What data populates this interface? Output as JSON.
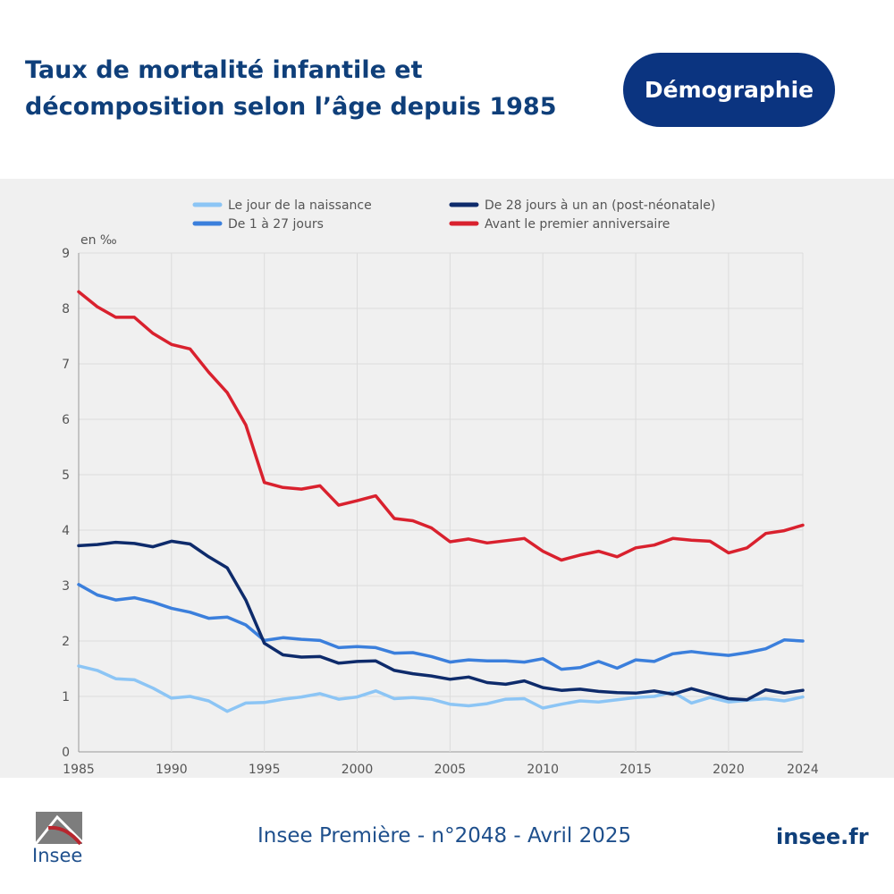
{
  "header": {
    "title_line1": "Taux de mortalité infantile et",
    "title_line2": "décomposition selon l’âge depuis 1985",
    "badge": "Démographie"
  },
  "footer": {
    "source": "Insee Première - n°2048 - Avril 2025",
    "site": "insee.fr",
    "logo_text": "Insee"
  },
  "colors": {
    "red": "#d9212e",
    "navy": "#0e2b6b",
    "blue": "#3b7fdc",
    "light_blue": "#8cc5f5"
  },
  "chart_data": {
    "type": "line",
    "title": "Taux de mortalité infantile et décomposition selon l’âge depuis 1985",
    "ylabel": "en ‰",
    "xlabel": "",
    "ylim": [
      0,
      9
    ],
    "xlim": [
      1985,
      2024
    ],
    "yticks": [
      "0",
      "1",
      "2",
      "3",
      "4",
      "5",
      "6",
      "7",
      "8",
      "9"
    ],
    "xticks": [
      "1985",
      "1990",
      "1995",
      "2000",
      "2005",
      "2010",
      "2015",
      "2020",
      "2024"
    ],
    "grid": true,
    "legend_position": "top",
    "x": [
      1985,
      1986,
      1987,
      1988,
      1989,
      1990,
      1991,
      1992,
      1993,
      1994,
      1995,
      1996,
      1997,
      1998,
      1999,
      2000,
      2001,
      2002,
      2003,
      2004,
      2005,
      2006,
      2007,
      2008,
      2009,
      2010,
      2011,
      2012,
      2013,
      2014,
      2015,
      2016,
      2017,
      2018,
      2019,
      2020,
      2021,
      2022,
      2023,
      2024
    ],
    "series": [
      {
        "name": "Le jour de la naissance",
        "color": "#8cc5f5",
        "values": [
          1.55,
          1.47,
          1.32,
          1.3,
          1.15,
          0.97,
          1.0,
          0.92,
          0.73,
          0.88,
          0.89,
          0.95,
          0.99,
          1.05,
          0.95,
          0.99,
          1.1,
          0.96,
          0.98,
          0.95,
          0.86,
          0.83,
          0.87,
          0.95,
          0.96,
          0.79,
          0.86,
          0.92,
          0.9,
          0.94,
          0.98,
          1.0,
          1.08,
          0.88,
          0.98,
          0.9,
          0.93,
          0.96,
          0.92,
          0.99
        ]
      },
      {
        "name": "De 1 à 27 jours",
        "color": "#3b7fdc",
        "values": [
          3.02,
          2.83,
          2.74,
          2.78,
          2.7,
          2.59,
          2.52,
          2.41,
          2.43,
          2.29,
          2.01,
          2.06,
          2.03,
          2.01,
          1.88,
          1.9,
          1.88,
          1.78,
          1.79,
          1.72,
          1.62,
          1.66,
          1.64,
          1.64,
          1.62,
          1.68,
          1.49,
          1.52,
          1.63,
          1.51,
          1.66,
          1.63,
          1.77,
          1.81,
          1.77,
          1.74,
          1.79,
          1.86,
          2.02,
          2.0
        ]
      },
      {
        "name": "De 28 jours à un an  (post-néonatale)",
        "color": "#0e2b6b",
        "values": [
          3.72,
          3.74,
          3.78,
          3.76,
          3.7,
          3.8,
          3.75,
          3.52,
          3.32,
          2.74,
          1.96,
          1.75,
          1.71,
          1.72,
          1.6,
          1.63,
          1.64,
          1.47,
          1.41,
          1.37,
          1.31,
          1.35,
          1.25,
          1.22,
          1.28,
          1.16,
          1.11,
          1.13,
          1.09,
          1.07,
          1.06,
          1.1,
          1.04,
          1.14,
          1.05,
          0.96,
          0.94,
          1.12,
          1.06,
          1.11
        ]
      },
      {
        "name": "Avant le premier anniversaire",
        "color": "#d9212e",
        "values": [
          8.3,
          8.03,
          7.84,
          7.84,
          7.55,
          7.35,
          7.27,
          6.85,
          6.48,
          5.9,
          4.86,
          4.77,
          4.74,
          4.8,
          4.45,
          4.53,
          4.62,
          4.21,
          4.17,
          4.04,
          3.79,
          3.84,
          3.77,
          3.81,
          3.85,
          3.62,
          3.46,
          3.55,
          3.62,
          3.52,
          3.68,
          3.73,
          3.85,
          3.82,
          3.8,
          3.59,
          3.68,
          3.94,
          3.99,
          4.09
        ]
      }
    ]
  }
}
